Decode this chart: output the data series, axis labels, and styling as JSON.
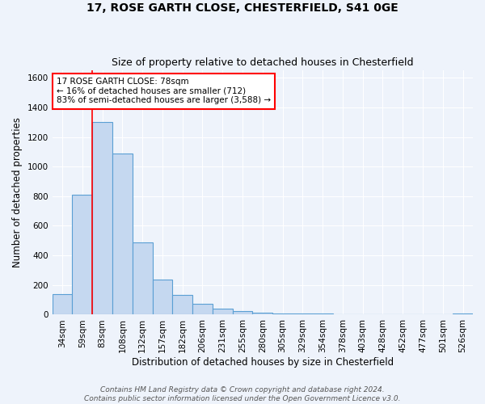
{
  "title1": "17, ROSE GARTH CLOSE, CHESTERFIELD, S41 0GE",
  "title2": "Size of property relative to detached houses in Chesterfield",
  "xlabel": "Distribution of detached houses by size in Chesterfield",
  "ylabel": "Number of detached properties",
  "categories": [
    "34sqm",
    "59sqm",
    "83sqm",
    "108sqm",
    "132sqm",
    "157sqm",
    "182sqm",
    "206sqm",
    "231sqm",
    "255sqm",
    "280sqm",
    "305sqm",
    "329sqm",
    "354sqm",
    "378sqm",
    "403sqm",
    "428sqm",
    "452sqm",
    "477sqm",
    "501sqm",
    "526sqm"
  ],
  "values": [
    140,
    810,
    1300,
    1090,
    490,
    235,
    135,
    75,
    40,
    25,
    15,
    10,
    8,
    10,
    5,
    5,
    3,
    3,
    3,
    2,
    10
  ],
  "bar_color": "#c5d8f0",
  "bar_edge_color": "#5a9fd4",
  "ylim": [
    0,
    1650
  ],
  "yticks": [
    0,
    200,
    400,
    600,
    800,
    1000,
    1200,
    1400,
    1600
  ],
  "red_line_x": 1.5,
  "annotation_text1": "17 ROSE GARTH CLOSE: 78sqm",
  "annotation_text2": "← 16% of detached houses are smaller (712)",
  "annotation_text3": "83% of semi-detached houses are larger (3,588) →",
  "annotation_box_color": "white",
  "annotation_box_edge_color": "red",
  "red_line_color": "red",
  "footnote1": "Contains HM Land Registry data © Crown copyright and database right 2024.",
  "footnote2": "Contains public sector information licensed under the Open Government Licence v3.0.",
  "bg_color": "#eef3fb",
  "grid_color": "white",
  "title_fontsize": 10,
  "subtitle_fontsize": 9,
  "axis_label_fontsize": 8.5,
  "tick_fontsize": 7.5,
  "annotation_fontsize": 7.5,
  "footnote_fontsize": 6.5
}
